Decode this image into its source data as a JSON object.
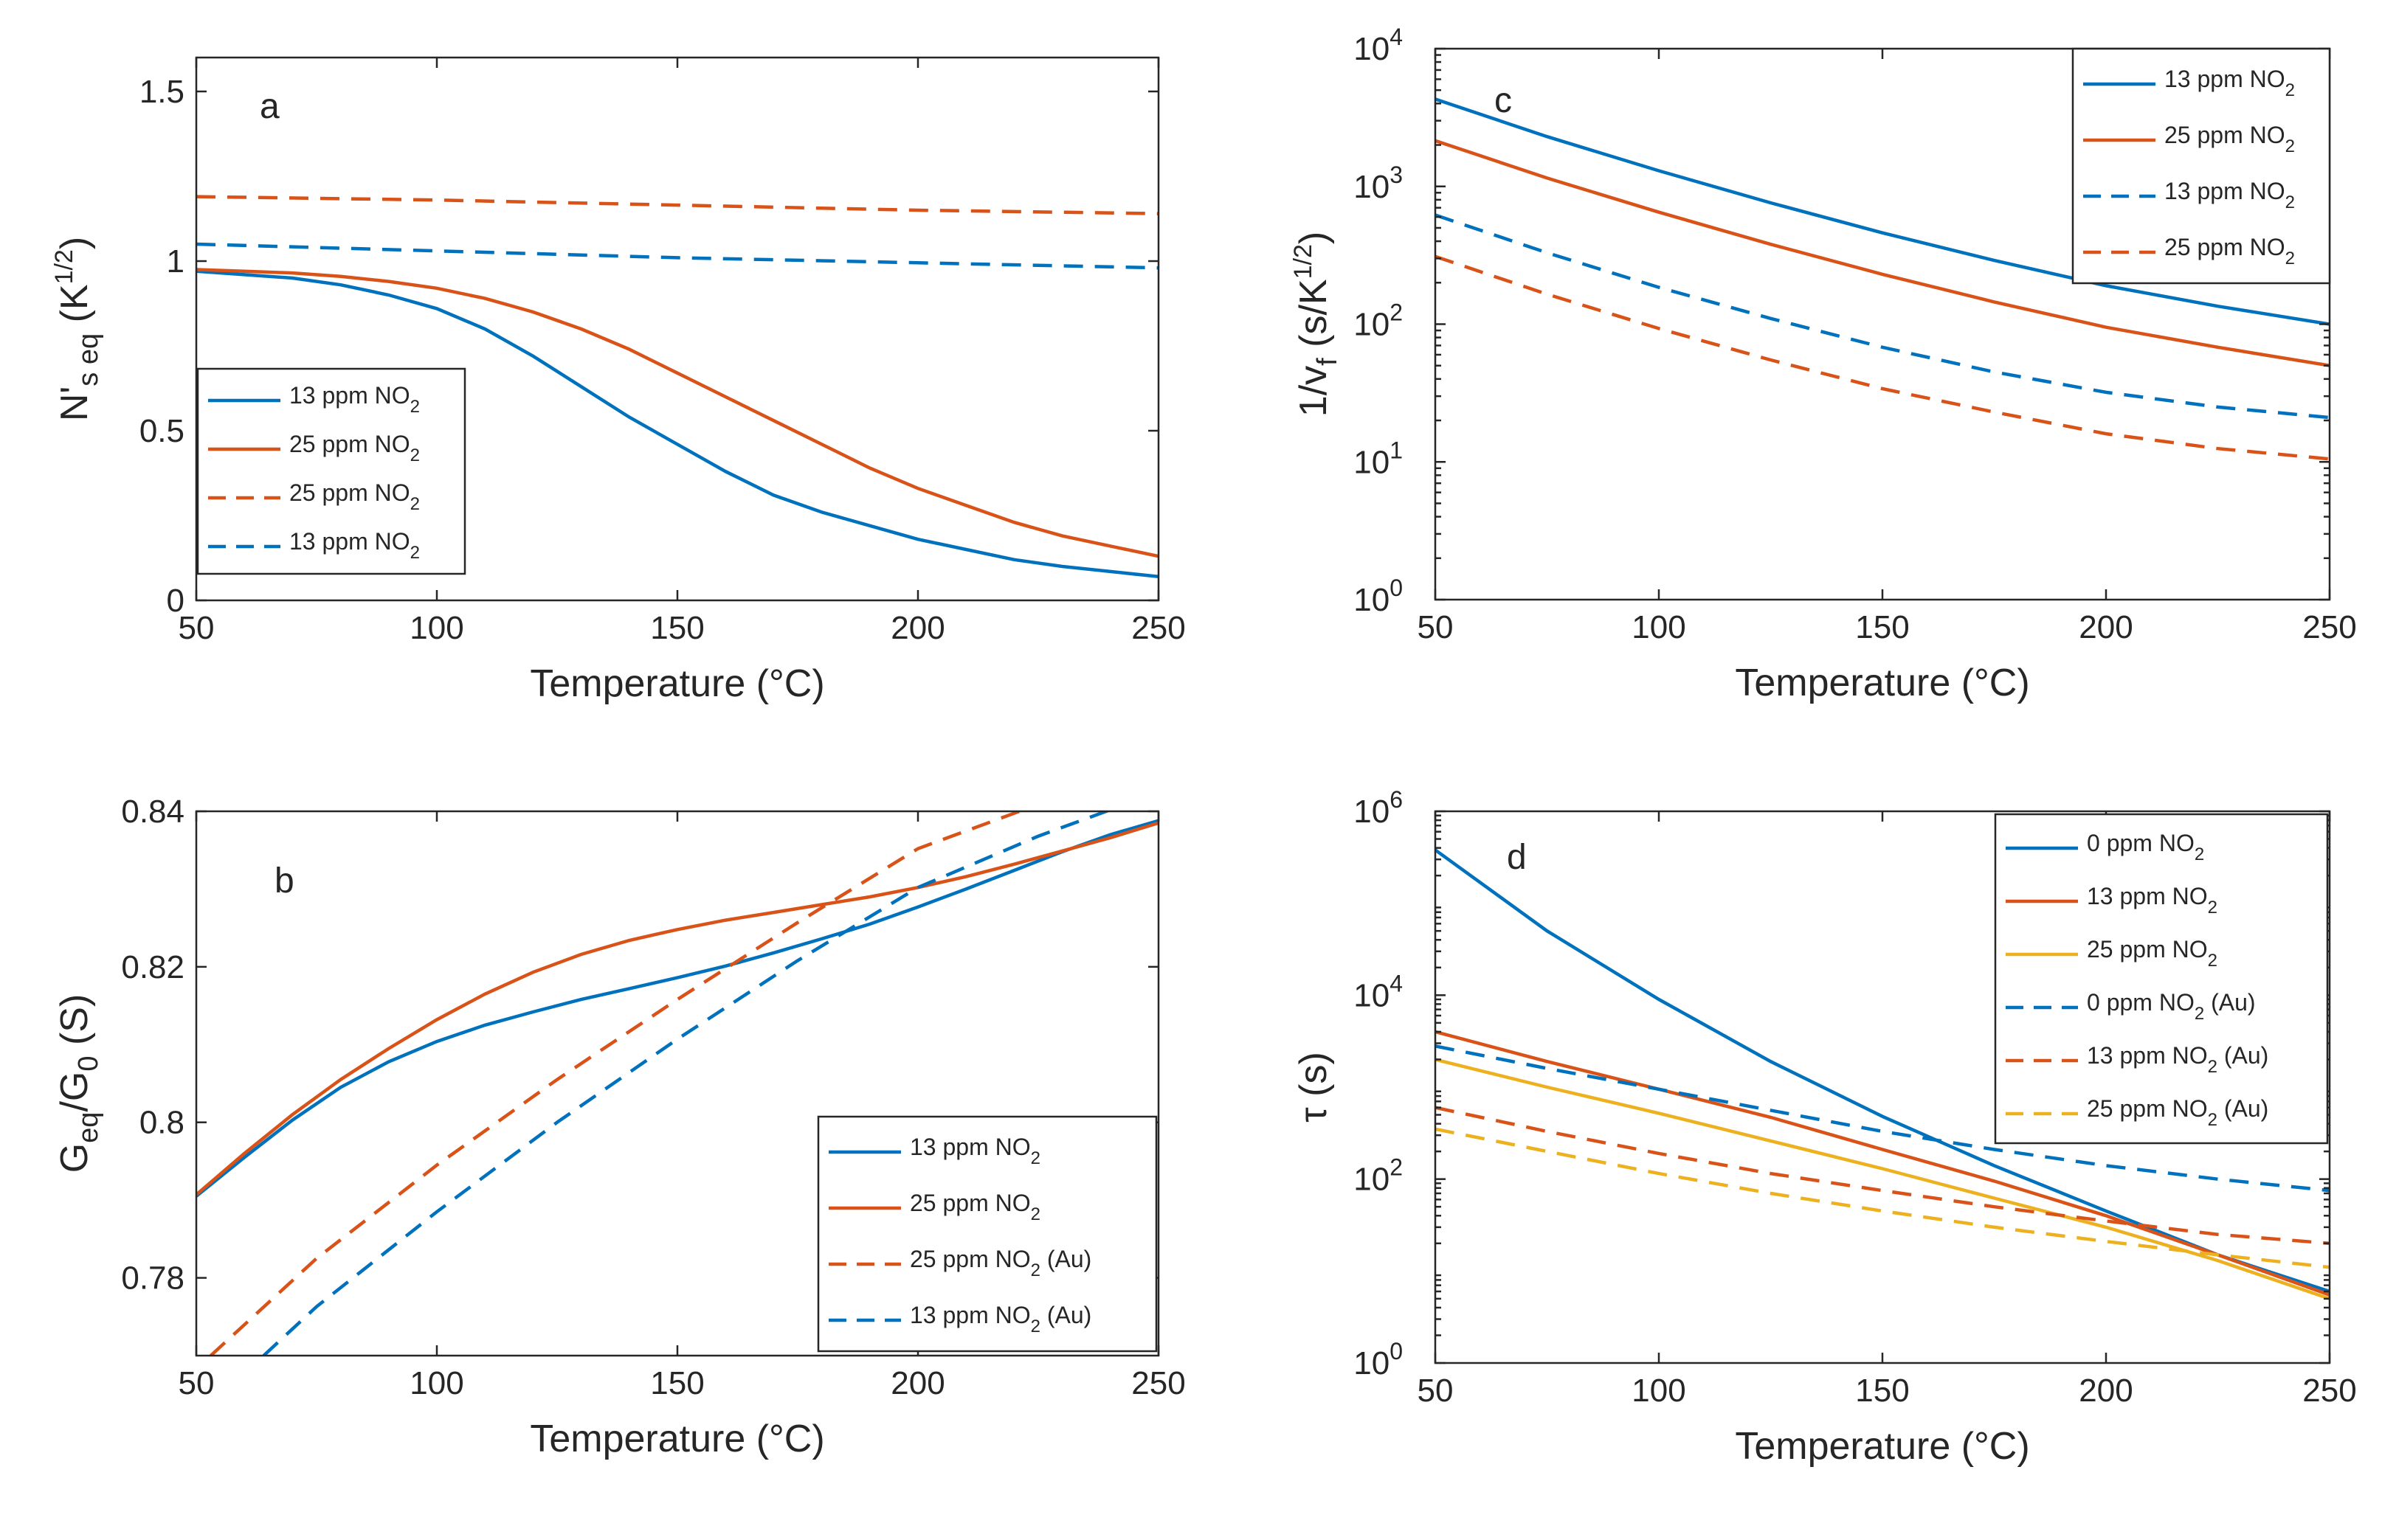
{
  "colors": {
    "blue": "#0072BD",
    "red": "#D95319",
    "yellow": "#EDB120"
  },
  "chart_data": [
    {
      "panel": "a",
      "type": "line",
      "x_label": "Temperature (°C)",
      "y_label": {
        "base": "N'",
        "sub": "s eq",
        "unit_open": " (K",
        "unit_sup": "1/2",
        "unit_close": ")"
      },
      "x_lim": [
        50,
        250
      ],
      "y_lim": [
        0,
        1.6
      ],
      "y_scale": "linear",
      "x_ticks": [
        "50",
        "100",
        "150",
        "200",
        "250"
      ],
      "y_ticks": [
        {
          "v": 0,
          "label": "0"
        },
        {
          "v": 0.5,
          "label": "0.5"
        },
        {
          "v": 1,
          "label": "1"
        },
        {
          "v": 1.5,
          "label": "1.5"
        }
      ],
      "legend_position": "bottom-left",
      "series": [
        {
          "name": {
            "text": "13 ppm NO",
            "sub": "2",
            "after": ""
          },
          "color": "#0072BD",
          "dash": "solid",
          "x": [
            50,
            60,
            70,
            80,
            90,
            100,
            110,
            120,
            130,
            140,
            150,
            160,
            170,
            180,
            190,
            200,
            210,
            220,
            230,
            240,
            250
          ],
          "y": [
            0.97,
            0.96,
            0.95,
            0.93,
            0.9,
            0.86,
            0.8,
            0.72,
            0.63,
            0.54,
            0.46,
            0.38,
            0.31,
            0.26,
            0.22,
            0.18,
            0.15,
            0.12,
            0.1,
            0.085,
            0.07
          ]
        },
        {
          "name": {
            "text": "25 ppm NO",
            "sub": "2",
            "after": ""
          },
          "color": "#D95319",
          "dash": "solid",
          "x": [
            50,
            60,
            70,
            80,
            90,
            100,
            110,
            120,
            130,
            140,
            150,
            160,
            170,
            180,
            190,
            200,
            210,
            220,
            230,
            240,
            250
          ],
          "y": [
            0.975,
            0.97,
            0.965,
            0.955,
            0.94,
            0.92,
            0.89,
            0.85,
            0.8,
            0.74,
            0.67,
            0.6,
            0.53,
            0.46,
            0.39,
            0.33,
            0.28,
            0.23,
            0.19,
            0.16,
            0.13
          ]
        },
        {
          "name": {
            "text": "25 ppm NO",
            "sub": "2",
            "after": ""
          },
          "color": "#D95319",
          "dash": "dashed",
          "x": [
            50,
            100,
            150,
            200,
            250
          ],
          "y": [
            1.19,
            1.18,
            1.165,
            1.15,
            1.14
          ]
        },
        {
          "name": {
            "text": "13 ppm NO",
            "sub": "2",
            "after": ""
          },
          "color": "#0072BD",
          "dash": "dashed",
          "x": [
            50,
            100,
            150,
            200,
            250
          ],
          "y": [
            1.05,
            1.03,
            1.01,
            0.995,
            0.98
          ]
        }
      ]
    },
    {
      "panel": "c",
      "type": "line",
      "x_label": "Temperature (°C)",
      "y_label": {
        "base": "1/v",
        "sub": "f",
        "unit_open": " (s/K",
        "unit_sup": "1/2",
        "unit_close": ")"
      },
      "x_lim": [
        50,
        250
      ],
      "y_lim": [
        1,
        10000
      ],
      "y_scale": "log",
      "x_ticks": [
        "50",
        "100",
        "150",
        "200",
        "250"
      ],
      "y_ticks": [
        {
          "v": 1,
          "label": "10",
          "sup": "0"
        },
        {
          "v": 10,
          "label": "10",
          "sup": "1"
        },
        {
          "v": 100,
          "label": "10",
          "sup": "2"
        },
        {
          "v": 1000,
          "label": "10",
          "sup": "3"
        },
        {
          "v": 10000,
          "label": "10",
          "sup": "4"
        }
      ],
      "legend_position": "top-right",
      "series": [
        {
          "name": {
            "text": "13 ppm NO",
            "sub": "2",
            "after": ""
          },
          "color": "#0072BD",
          "dash": "solid",
          "x": [
            50,
            75,
            100,
            125,
            150,
            175,
            200,
            225,
            250
          ],
          "y": [
            4300,
            2300,
            1300,
            760,
            460,
            290,
            190,
            135,
            100
          ]
        },
        {
          "name": {
            "text": "25 ppm NO",
            "sub": "2",
            "after": ""
          },
          "color": "#D95319",
          "dash": "solid",
          "x": [
            50,
            75,
            100,
            125,
            150,
            175,
            200,
            225,
            250
          ],
          "y": [
            2150,
            1150,
            650,
            380,
            230,
            145,
            95,
            68,
            50
          ]
        },
        {
          "name": {
            "text": "13 ppm NO",
            "sub": "2",
            "after": ""
          },
          "color": "#0072BD",
          "dash": "dashed",
          "x": [
            50,
            75,
            100,
            125,
            150,
            175,
            200,
            225,
            250
          ],
          "y": [
            620,
            330,
            185,
            110,
            68,
            45,
            32,
            25,
            21
          ]
        },
        {
          "name": {
            "text": "25 ppm NO",
            "sub": "2",
            "after": ""
          },
          "color": "#D95319",
          "dash": "dashed",
          "x": [
            50,
            75,
            100,
            125,
            150,
            175,
            200,
            225,
            250
          ],
          "y": [
            310,
            165,
            93,
            55,
            34,
            23,
            16,
            12.5,
            10.5
          ]
        }
      ]
    },
    {
      "panel": "b",
      "type": "line",
      "x_label": "Temperature (°C)",
      "y_label": {
        "base": "G",
        "sub": "eq",
        "mid": "/G",
        "sub2": "0",
        "unit_open": " (S)",
        "unit_sup": "",
        "unit_close": ""
      },
      "x_lim": [
        50,
        250
      ],
      "y_lim": [
        0.77,
        0.84
      ],
      "y_scale": "linear",
      "x_ticks": [
        "50",
        "100",
        "150",
        "200",
        "250"
      ],
      "y_ticks": [
        {
          "v": 0.78,
          "label": "0.78"
        },
        {
          "v": 0.8,
          "label": "0.8"
        },
        {
          "v": 0.82,
          "label": "0.82"
        },
        {
          "v": 0.84,
          "label": "0.84"
        }
      ],
      "legend_position": "bottom-right",
      "series": [
        {
          "name": {
            "text": "13 ppm  NO",
            "sub": "2",
            "after": ""
          },
          "color": "#0072BD",
          "dash": "solid",
          "x": [
            50,
            60,
            70,
            80,
            90,
            100,
            110,
            120,
            130,
            140,
            150,
            160,
            170,
            180,
            190,
            200,
            210,
            220,
            230,
            240,
            250
          ],
          "y": [
            0.7905,
            0.7955,
            0.8003,
            0.8045,
            0.8078,
            0.8104,
            0.8125,
            0.8142,
            0.8158,
            0.8172,
            0.8186,
            0.8201,
            0.8218,
            0.8236,
            0.8255,
            0.8277,
            0.83,
            0.8324,
            0.8348,
            0.837,
            0.8388
          ]
        },
        {
          "name": {
            "text": "25 ppm  NO",
            "sub": "2",
            "after": ""
          },
          "color": "#D95319",
          "dash": "solid",
          "x": [
            50,
            60,
            70,
            80,
            90,
            100,
            110,
            120,
            130,
            140,
            150,
            160,
            170,
            180,
            190,
            200,
            210,
            220,
            230,
            240,
            250
          ],
          "y": [
            0.7907,
            0.796,
            0.801,
            0.8055,
            0.8095,
            0.8132,
            0.8165,
            0.8193,
            0.8216,
            0.8234,
            0.8248,
            0.826,
            0.827,
            0.828,
            0.829,
            0.8302,
            0.8316,
            0.8332,
            0.8349,
            0.8366,
            0.8385
          ]
        },
        {
          "name": {
            "text": "25 ppm NO",
            "sub": "2",
            "after": " (Au)"
          },
          "color": "#D95319",
          "dash": "dashed",
          "x": [
            53,
            75,
            100,
            125,
            150,
            175,
            200,
            222
          ],
          "y": [
            0.77,
            0.7825,
            0.7945,
            0.8055,
            0.8158,
            0.8257,
            0.8352,
            0.8402
          ]
        },
        {
          "name": {
            "text": "13 ppm NO",
            "sub": "2",
            "after": " (Au)"
          },
          "color": "#0072BD",
          "dash": "dashed",
          "x": [
            64,
            75,
            100,
            125,
            150,
            175,
            200,
            225,
            240
          ],
          "y": [
            0.77,
            0.7763,
            0.7885,
            0.8,
            0.8107,
            0.8208,
            0.8302,
            0.8368,
            0.8402
          ]
        }
      ]
    },
    {
      "panel": "d",
      "type": "line",
      "x_label": "Temperature (°C)",
      "y_label": {
        "base": "τ",
        "sub": "",
        "unit_open": " (s)",
        "unit_sup": "",
        "unit_close": ""
      },
      "x_lim": [
        50,
        250
      ],
      "y_lim": [
        1,
        1000000
      ],
      "y_scale": "log",
      "x_ticks": [
        "50",
        "100",
        "150",
        "200",
        "250"
      ],
      "y_ticks": [
        {
          "v": 1,
          "label": "10",
          "sup": "0"
        },
        {
          "v": 100,
          "label": "10",
          "sup": "2"
        },
        {
          "v": 10000,
          "label": "10",
          "sup": "4"
        },
        {
          "v": 1000000,
          "label": "10",
          "sup": "6"
        }
      ],
      "legend_position": "top-right",
      "series": [
        {
          "name": {
            "text": "0 ppm NO",
            "sub": "2",
            "after": ""
          },
          "color": "#0072BD",
          "dash": "solid",
          "x": [
            50,
            75,
            100,
            125,
            150,
            175,
            200,
            225,
            250
          ],
          "y": [
            380000,
            50000,
            9000,
            1900,
            480,
            140,
            45,
            15,
            6
          ]
        },
        {
          "name": {
            "text": "13 ppm NO",
            "sub": "2",
            "after": ""
          },
          "color": "#D95319",
          "dash": "solid",
          "x": [
            50,
            75,
            100,
            125,
            150,
            175,
            200,
            225,
            250
          ],
          "y": [
            4000,
            1900,
            950,
            470,
            210,
            95,
            40,
            15,
            5.5
          ]
        },
        {
          "name": {
            "text": "25 ppm NO",
            "sub": "2",
            "after": ""
          },
          "color": "#EDB120",
          "dash": "solid",
          "x": [
            50,
            75,
            100,
            125,
            150,
            175,
            200,
            225,
            250
          ],
          "y": [
            2000,
            1000,
            520,
            260,
            130,
            62,
            30,
            13,
            5
          ]
        },
        {
          "name": {
            "text": "0 ppm NO",
            "sub": "2",
            "after": " (Au)"
          },
          "color": "#0072BD",
          "dash": "dashed",
          "x": [
            50,
            75,
            100,
            125,
            150,
            175,
            200,
            225,
            250
          ],
          "y": [
            2800,
            1600,
            950,
            560,
            330,
            210,
            140,
            100,
            75
          ]
        },
        {
          "name": {
            "text": "13 ppm NO",
            "sub": "2",
            "after": " (Au)"
          },
          "color": "#D95319",
          "dash": "dashed",
          "x": [
            50,
            75,
            100,
            125,
            150,
            175,
            200,
            225,
            250
          ],
          "y": [
            600,
            330,
            190,
            115,
            75,
            50,
            35,
            25,
            20
          ]
        },
        {
          "name": {
            "text": "25 ppm NO",
            "sub": "2",
            "after": "  (Au)"
          },
          "color": "#EDB120",
          "dash": "dashed",
          "x": [
            50,
            75,
            100,
            125,
            150,
            175,
            200,
            225,
            250
          ],
          "y": [
            350,
            200,
            115,
            70,
            45,
            30,
            21,
            15,
            11
          ]
        }
      ]
    }
  ]
}
